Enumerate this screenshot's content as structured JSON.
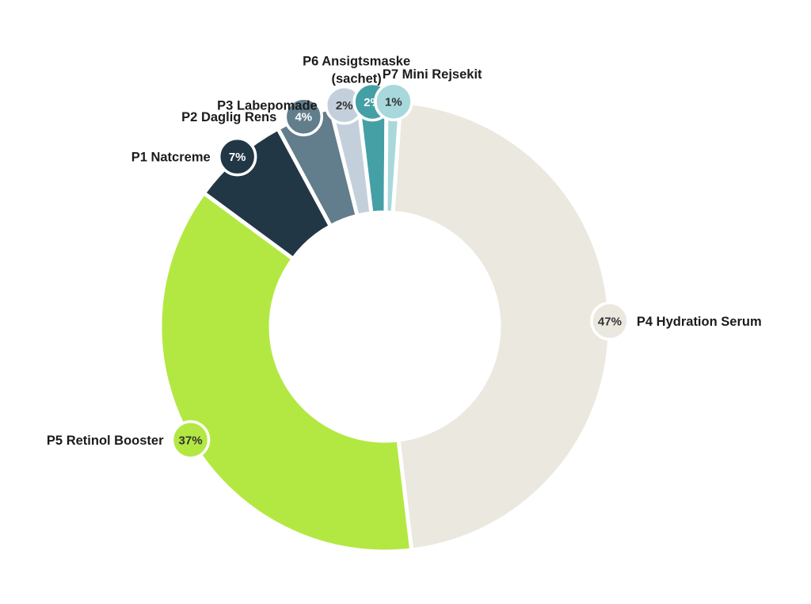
{
  "chart_data": {
    "type": "pie",
    "variant": "donut",
    "title": "",
    "categories": [
      "P4 Hydration Serum",
      "P5 Retinol Booster",
      "P1 Natcreme",
      "P2 Daglig Rens",
      "P3 Labepomade",
      "P6 Ansigtsmaske (sachet)",
      "P7 Mini Rejsekit"
    ],
    "values": [
      47,
      37,
      7,
      4,
      2,
      2,
      1
    ],
    "value_labels": [
      "47%",
      "37%",
      "7%",
      "4%",
      "2%",
      "2%",
      "1%"
    ],
    "colors": [
      "#ebe8e0",
      "#b3e842",
      "#223746",
      "#627d8c",
      "#c3d0dc",
      "#45a0a6",
      "#a8d8db"
    ],
    "label_text_colors": [
      "#333333",
      "#333333",
      "#ffffff",
      "#ffffff",
      "#333333",
      "#ffffff",
      "#333333"
    ],
    "legend": "none"
  }
}
